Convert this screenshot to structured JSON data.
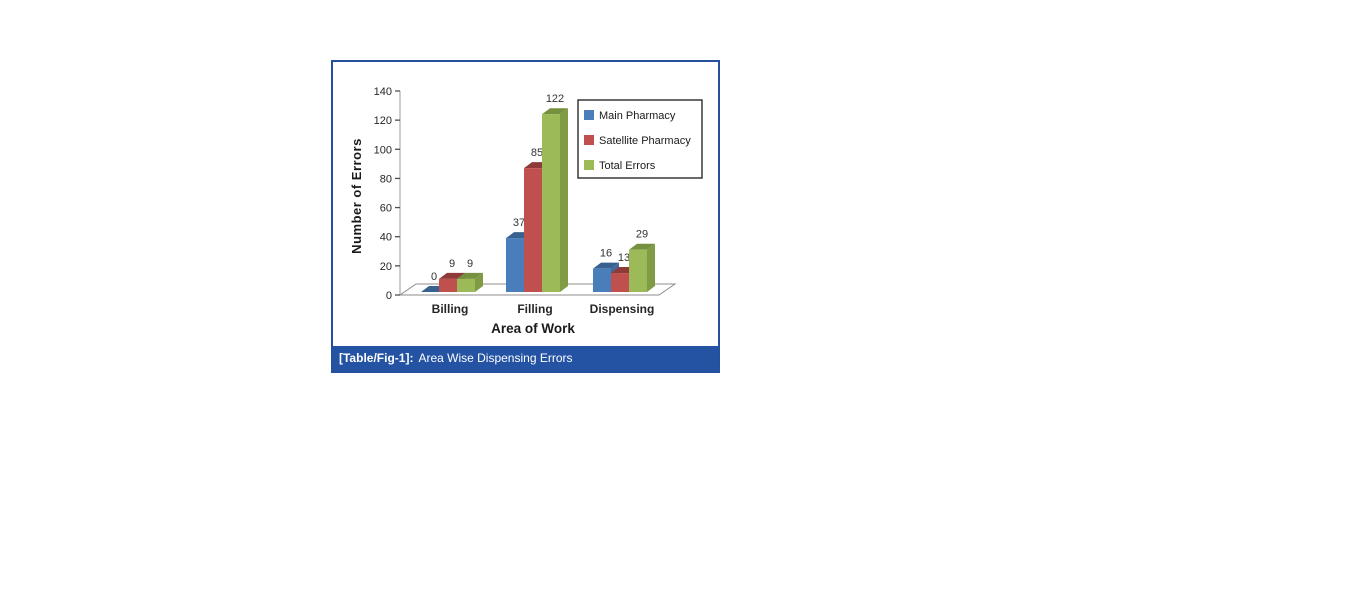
{
  "figure": {
    "border_color": "#24519e",
    "caption": {
      "label": "[Table/Fig-1]:",
      "text": "Area Wise Dispensing Errors",
      "background": "#2453a4",
      "text_color": "#ffffff"
    }
  },
  "chart_data": {
    "type": "bar",
    "projection": "3d",
    "categories": [
      "Billing",
      "Filling",
      "Dispensing"
    ],
    "series": [
      {
        "name": "Main Pharmacy",
        "values": [
          0,
          37,
          16
        ],
        "color": "#4a7ebb",
        "top_color": "#39618f",
        "side_color": "#40699c"
      },
      {
        "name": "Satellite Pharmacy",
        "values": [
          9,
          85,
          13
        ],
        "color": "#c0504d",
        "top_color": "#8e3a38",
        "side_color": "#9c403d"
      },
      {
        "name": "Total Errors",
        "values": [
          9,
          122,
          29
        ],
        "color": "#9cba58",
        "top_color": "#75903e",
        "side_color": "#7f9c44"
      }
    ],
    "xlabel": "Area of Work",
    "ylabel": "Number of Errors",
    "ylim": [
      0,
      140
    ],
    "ytick_step": 20,
    "yticks": [
      0,
      20,
      40,
      60,
      80,
      100,
      120,
      140
    ],
    "value_labels": true,
    "grid": false,
    "legend_position": "top-right",
    "axis_color": "#9b9b9b",
    "tick_color": "#4d4d4d",
    "label_color": "#262626",
    "value_label_color": "#333333",
    "floor_stroke": "#8c8c8c",
    "legend_border": "#2b2b2b"
  }
}
